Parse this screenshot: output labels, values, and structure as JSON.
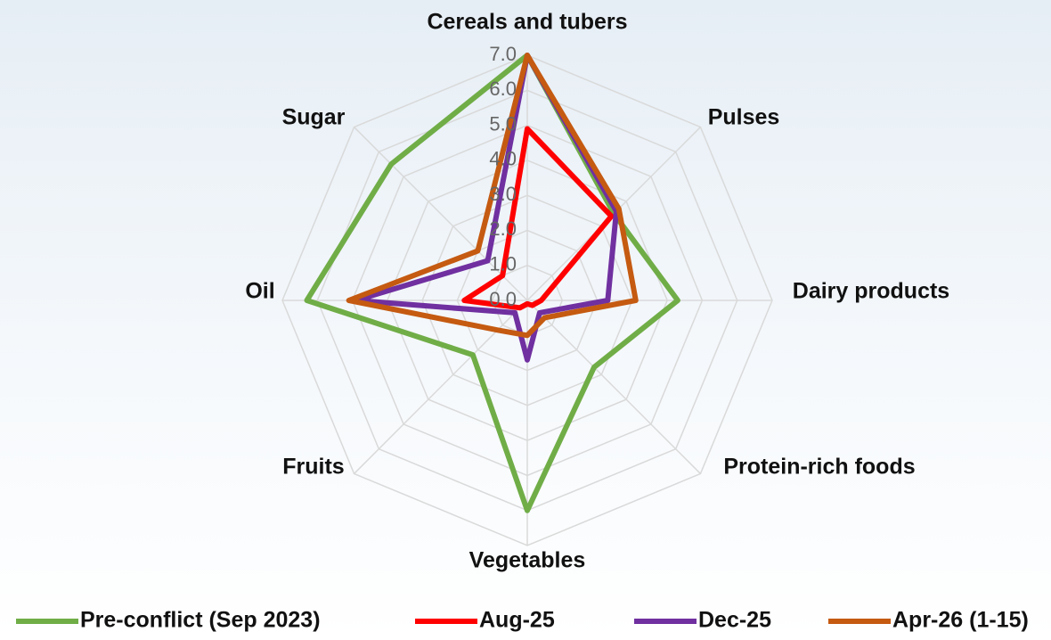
{
  "chart_data": {
    "type": "radar",
    "categories": [
      "Cereals and tubers",
      "Pulses",
      "Dairy products",
      "Protein-rich foods",
      "Vegetables",
      "Fruits",
      "Oil",
      "Sugar"
    ],
    "series": [
      {
        "name": "Pre-conflict (Sep 2023)",
        "color": "#70ad47",
        "values": [
          7.0,
          3.5,
          4.3,
          2.7,
          6.0,
          2.2,
          6.3,
          5.5
        ]
      },
      {
        "name": "Aug-25",
        "color": "#ff0000",
        "values": [
          4.9,
          3.4,
          0.4,
          0.2,
          0.1,
          0.3,
          1.8,
          1.0
        ]
      },
      {
        "name": "Dec-25",
        "color": "#7030a0",
        "values": [
          7.0,
          3.6,
          2.3,
          0.5,
          1.7,
          0.5,
          4.9,
          1.6
        ]
      },
      {
        "name": "Apr-26 (1-15)",
        "color": "#c55a11",
        "values": [
          7.0,
          3.7,
          3.1,
          0.7,
          1.0,
          1.2,
          5.1,
          2.0
        ]
      }
    ],
    "ylim": [
      0,
      7
    ],
    "yticks": [
      {
        "value": 0,
        "label": "0.0"
      },
      {
        "value": 1,
        "label": "1.0"
      },
      {
        "value": 2,
        "label": "2.0"
      },
      {
        "value": 3,
        "label": "3.0"
      },
      {
        "value": 4,
        "label": "4.0"
      },
      {
        "value": 5,
        "label": "5.0"
      },
      {
        "value": 6,
        "label": "6.0"
      },
      {
        "value": 7,
        "label": "7.0"
      }
    ],
    "grid": true,
    "legend": "bottom"
  }
}
